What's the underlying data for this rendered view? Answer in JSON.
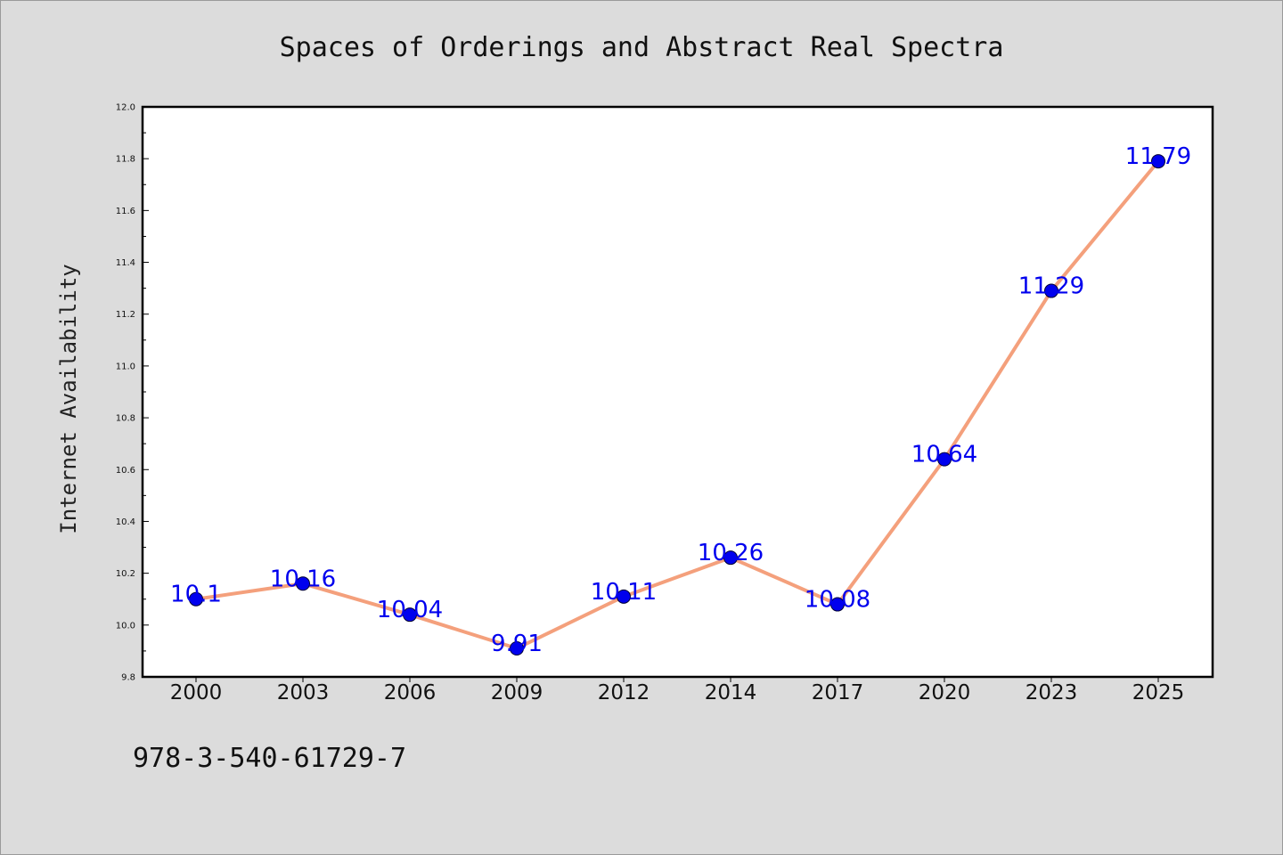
{
  "chart_data": {
    "type": "line",
    "title": "Spaces of Orderings and Abstract Real Spectra",
    "xlabel": "",
    "ylabel": "Internet Availability",
    "categories": [
      "2000",
      "2003",
      "2006",
      "2009",
      "2012",
      "2014",
      "2017",
      "2020",
      "2023",
      "2025"
    ],
    "series": [
      {
        "values": [
          10.1,
          10.16,
          10.04,
          9.91,
          10.11,
          10.26,
          10.08,
          10.64,
          11.29,
          11.79
        ],
        "labels": [
          "10.1",
          "10.16",
          "10.04",
          "9.91",
          "10.11",
          "10.26",
          "10.08",
          "10.64",
          "11.29",
          "11.79"
        ]
      }
    ],
    "ylim": [
      9.8,
      12.0
    ],
    "yticks": [
      "9.8",
      "10.0",
      "10.2",
      "10.4",
      "10.6",
      "10.8",
      "11.0",
      "11.2",
      "11.4",
      "11.6",
      "11.8",
      "12.0"
    ],
    "grid": false,
    "legend": "none",
    "colors": {
      "line": "#f4a07c",
      "marker_fill": "#0000ee",
      "marker_edge": "#000033",
      "data_label": "#0000ee",
      "plot_background": "#ffffff",
      "page_background": "#dcdcdc"
    }
  },
  "footer": {
    "isbn": "978-3-540-61729-7"
  }
}
